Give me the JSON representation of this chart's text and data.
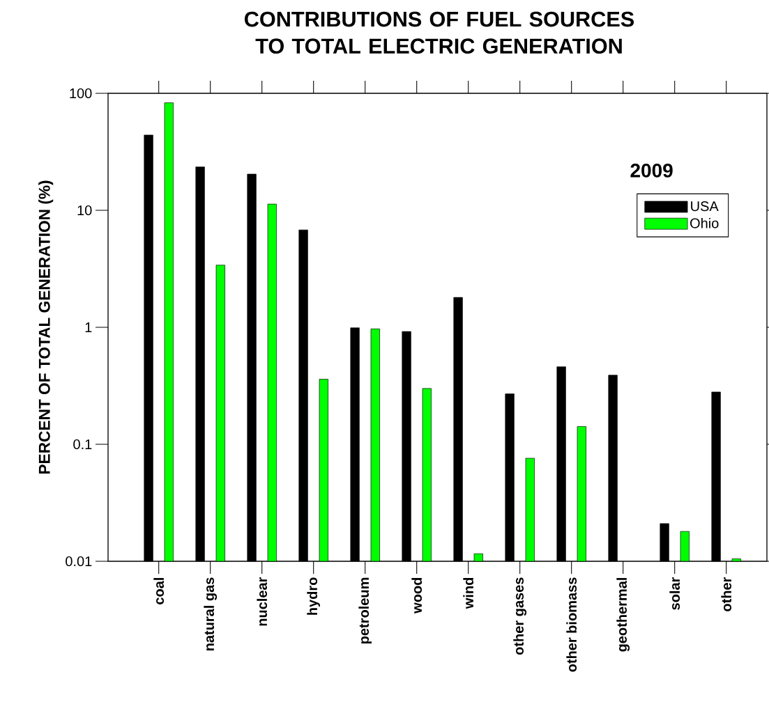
{
  "chart_data": {
    "type": "bar",
    "title": "CONTRIBUTIONS OF FUEL SOURCES TO TOTAL ELECTRIC GENERATION",
    "ylabel": "PERCENT OF TOTAL GENERATION (%)",
    "categories": [
      "coal",
      "natural gas",
      "nuclear",
      "hydro",
      "petroleum",
      "wood",
      "wind",
      "other gases",
      "other biomass",
      "geothermal",
      "solar",
      "other"
    ],
    "series": [
      {
        "name": "USA",
        "color": "#000000",
        "values": [
          44,
          23.5,
          20.4,
          6.8,
          0.99,
          0.92,
          1.8,
          0.27,
          0.46,
          0.39,
          0.021,
          0.28
        ]
      },
      {
        "name": "Ohio",
        "color": "#00ff00",
        "values": [
          83,
          3.4,
          11.3,
          0.36,
          0.97,
          0.3,
          0.0116,
          0.076,
          0.142,
          null,
          0.018,
          0.0105
        ]
      }
    ],
    "log": "y",
    "ylim": [
      0.01,
      100
    ],
    "yticks": [
      100,
      10,
      1,
      0.1,
      0.01
    ],
    "legend": "top right",
    "annotations": [
      "2009"
    ]
  }
}
